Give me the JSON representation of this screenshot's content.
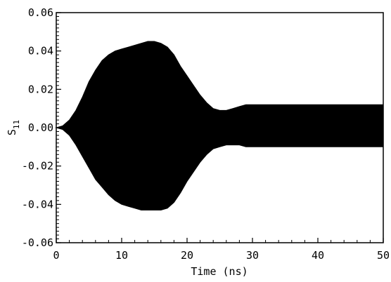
{
  "chart_data": {
    "type": "area",
    "title": "",
    "xlabel": "Time (ns)",
    "ylabel_main": "S",
    "ylabel_sub": "11",
    "xlim": [
      0,
      50
    ],
    "ylim": [
      -0.06,
      0.06
    ],
    "grid": false,
    "x_ticks": [
      0,
      10,
      20,
      30,
      40,
      50
    ],
    "x_tick_labels": [
      "0",
      "10",
      "20",
      "30",
      "40",
      "50"
    ],
    "y_ticks": [
      0.06,
      0.04,
      0.02,
      0.0,
      -0.02,
      -0.04,
      -0.06
    ],
    "y_tick_labels": [
      "0.06",
      "0.04",
      "0.02",
      "0.00",
      "-0.02",
      "-0.04",
      "-0.06"
    ],
    "series": [
      {
        "color": "#000000",
        "envelope_x": [
          0,
          1,
          2,
          3,
          4,
          5,
          6,
          7,
          8,
          9,
          10,
          11,
          12,
          13,
          14,
          15,
          16,
          17,
          18,
          19,
          20,
          21,
          22,
          23,
          24,
          25,
          26,
          27,
          28,
          29,
          30,
          32,
          35,
          40,
          45,
          50
        ],
        "envelope_upper": [
          0.0,
          0.001,
          0.004,
          0.009,
          0.016,
          0.024,
          0.03,
          0.035,
          0.038,
          0.04,
          0.041,
          0.042,
          0.043,
          0.044,
          0.045,
          0.045,
          0.044,
          0.042,
          0.038,
          0.032,
          0.027,
          0.022,
          0.017,
          0.013,
          0.01,
          0.009,
          0.009,
          0.01,
          0.011,
          0.012,
          0.012,
          0.012,
          0.012,
          0.012,
          0.012,
          0.012
        ],
        "envelope_lower": [
          0.0,
          -0.001,
          -0.004,
          -0.009,
          -0.015,
          -0.021,
          -0.027,
          -0.031,
          -0.035,
          -0.038,
          -0.04,
          -0.041,
          -0.042,
          -0.043,
          -0.043,
          -0.043,
          -0.043,
          -0.042,
          -0.039,
          -0.034,
          -0.028,
          -0.023,
          -0.018,
          -0.014,
          -0.011,
          -0.01,
          -0.009,
          -0.009,
          -0.009,
          -0.01,
          -0.01,
          -0.01,
          -0.01,
          -0.01,
          -0.01,
          -0.01
        ]
      }
    ]
  }
}
